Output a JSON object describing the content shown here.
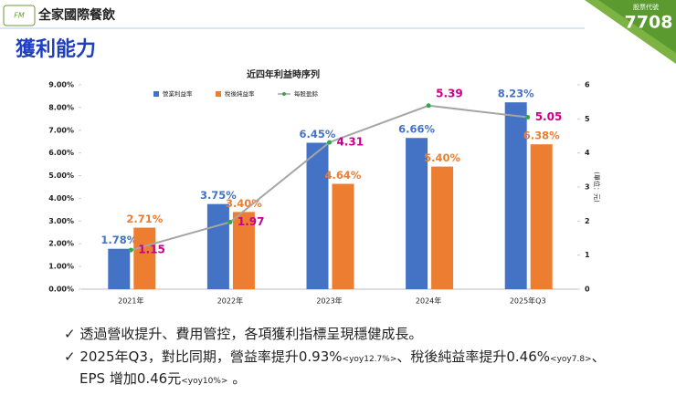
{
  "header": {
    "company": "全家國際餐飲",
    "title": "獲利能力",
    "badge_label": "股票代號",
    "badge_code": "7708"
  },
  "chart_data": {
    "type": "bar_line",
    "title": "近四年利益時序列",
    "categories": [
      "2021年",
      "2022年",
      "2023年",
      "2024年",
      "2025年Q3"
    ],
    "series": [
      {
        "name": "營業利益率",
        "color": "#4472c4",
        "values": [
          1.78,
          3.75,
          6.45,
          6.66,
          8.23
        ],
        "value_labels": [
          "1.78%",
          "3.75%",
          "6.45%",
          "6.66%",
          "8.23%"
        ]
      },
      {
        "name": "稅後純益率",
        "color": "#ed7d31",
        "values": [
          2.71,
          3.4,
          4.64,
          5.4,
          6.38
        ],
        "value_labels": [
          "2.71%",
          "3.40%",
          "4.64%",
          "5.40%",
          "6.38%"
        ]
      },
      {
        "name": "每股盈餘",
        "type": "line",
        "axis": "y2",
        "color": "#a5a5a5",
        "marker_color": "#2eaa4a",
        "label_color": "#c8008c",
        "values": [
          1.15,
          1.97,
          4.31,
          5.39,
          5.05
        ]
      }
    ],
    "ylim": [
      0,
      9
    ],
    "yticks": [
      {
        "value": 0,
        "label": "0.00%"
      },
      {
        "value": 1,
        "label": "1.00%"
      },
      {
        "value": 2,
        "label": "2.00%"
      },
      {
        "value": 3,
        "label": "3.00%"
      },
      {
        "value": 4,
        "label": "4.00%"
      },
      {
        "value": 5,
        "label": "5.00%"
      },
      {
        "value": 6,
        "label": "6.00%"
      },
      {
        "value": 7,
        "label": "7.00%"
      },
      {
        "value": 8,
        "label": "8.00%"
      },
      {
        "value": 9,
        "label": "9.00%"
      }
    ],
    "y2lim": [
      0,
      6
    ],
    "y2ticks": [
      0,
      1,
      2,
      3,
      4,
      5,
      6
    ],
    "y2label": "(單位：元)",
    "legend": "top"
  },
  "bullets": [
    [
      {
        "text": "透過營收提升、費用管控，各項獲利指標呈現穩健成長。",
        "sub": false
      }
    ],
    [
      {
        "text": "2025年Q3，對比同期，營益率提升0.93%",
        "sub": false
      },
      {
        "text": "<yoy12.7%>",
        "sub": true
      },
      {
        "text": "、稅後純益率提升0.46%",
        "sub": false
      },
      {
        "text": "<yoy7.8>",
        "sub": true
      },
      {
        "text": "、",
        "sub": false
      }
    ],
    [
      {
        "text": "EPS 增加0.46元",
        "sub": false
      },
      {
        "text": "<yoy10%>",
        "sub": true
      },
      {
        "text": " 。",
        "sub": false
      }
    ]
  ]
}
